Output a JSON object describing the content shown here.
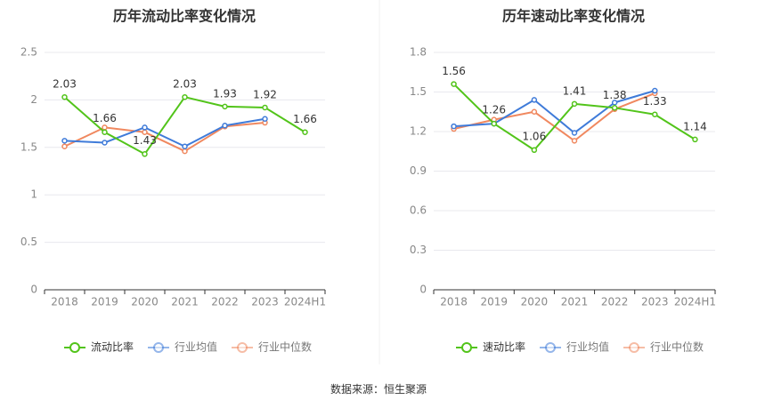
{
  "colors": {
    "primary": "#52c41a",
    "avg": "#3f7bd9",
    "median": "#f0885f",
    "grid": "#e8e8ee",
    "axis_text": "#888888",
    "label_text": "#333333"
  },
  "source_text": "数据来源：恒生聚源",
  "chart_data": [
    {
      "type": "line",
      "title": "历年流动比率变化情况",
      "categories": [
        "2018",
        "2019",
        "2020",
        "2021",
        "2022",
        "2023",
        "2024H1"
      ],
      "ylim": [
        0,
        2.5
      ],
      "yticks": [
        "0",
        "0.5",
        "1",
        "1.5",
        "2",
        "2.5"
      ],
      "series": [
        {
          "name": "流动比率",
          "color": "#52c41a",
          "values": [
            2.03,
            1.66,
            1.43,
            2.03,
            1.93,
            1.92,
            1.66
          ],
          "labels": [
            "2.03",
            "1.66",
            "1.43",
            "2.03",
            "1.93",
            "1.92",
            "1.66"
          ]
        },
        {
          "name": "行业均值",
          "color": "#3f7bd9",
          "values": [
            1.57,
            1.55,
            1.71,
            1.51,
            1.73,
            1.8,
            null
          ]
        },
        {
          "name": "行业中位数",
          "color": "#f0885f",
          "values": [
            1.51,
            1.71,
            1.66,
            1.46,
            1.72,
            1.76,
            null
          ]
        }
      ],
      "grid": true,
      "legend_position": "bottom"
    },
    {
      "type": "line",
      "title": "历年速动比率变化情况",
      "categories": [
        "2018",
        "2019",
        "2020",
        "2021",
        "2022",
        "2023",
        "2024H1"
      ],
      "ylim": [
        0,
        1.8
      ],
      "yticks": [
        "0",
        "0.3",
        "0.6",
        "0.9",
        "1.2",
        "1.5",
        "1.8"
      ],
      "series": [
        {
          "name": "速动比率",
          "color": "#52c41a",
          "values": [
            1.56,
            1.26,
            1.06,
            1.41,
            1.38,
            1.33,
            1.14
          ],
          "labels": [
            "1.56",
            "1.26",
            "1.06",
            "1.41",
            "1.38",
            "1.33",
            "1.14"
          ]
        },
        {
          "name": "行业均值",
          "color": "#3f7bd9",
          "values": [
            1.24,
            1.26,
            1.44,
            1.19,
            1.42,
            1.51,
            null
          ]
        },
        {
          "name": "行业中位数",
          "color": "#f0885f",
          "values": [
            1.22,
            1.29,
            1.35,
            1.13,
            1.37,
            1.49,
            null
          ]
        }
      ],
      "grid": true,
      "legend_position": "bottom"
    }
  ]
}
